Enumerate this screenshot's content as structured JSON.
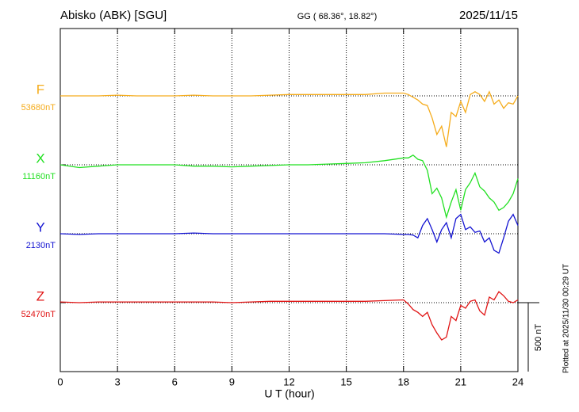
{
  "chart_data": {
    "type": "line",
    "title": "Abisko (ABK)  [SGU]",
    "subtitle": "GG ( 68.36°,  18.82°)",
    "date": "2025/11/15",
    "xlabel": "U T (hour)",
    "footnote": "Plotted at 2025/11/30 00:29 UT",
    "xlim": [
      0,
      24
    ],
    "xticks": [
      0,
      3,
      6,
      9,
      12,
      15,
      18,
      21,
      24
    ],
    "grid": true,
    "scale_bar": {
      "value": 500,
      "label": "500 nT"
    },
    "x": [
      0,
      1,
      2,
      3,
      4,
      5,
      6,
      7,
      8,
      9,
      10,
      11,
      12,
      13,
      14,
      15,
      16,
      17,
      18,
      18.25,
      18.5,
      18.75,
      19,
      19.25,
      19.5,
      19.75,
      20,
      20.25,
      20.5,
      20.75,
      21,
      21.25,
      21.5,
      21.75,
      22,
      22.25,
      22.5,
      22.75,
      23,
      23.25,
      23.5,
      23.75,
      24
    ],
    "series": [
      {
        "name": "F",
        "color": "#f5ac1c",
        "baseline": {
          "value": 53680,
          "label": "53680nT"
        },
        "values": [
          53680,
          53680,
          53680,
          53685,
          53680,
          53680,
          53680,
          53685,
          53680,
          53680,
          53680,
          53685,
          53690,
          53690,
          53690,
          53690,
          53690,
          53700,
          53700,
          53690,
          53670,
          53650,
          53620,
          53610,
          53520,
          53400,
          53460,
          53310,
          53560,
          53530,
          53640,
          53560,
          53690,
          53710,
          53690,
          53640,
          53710,
          53620,
          53650,
          53590,
          53630,
          53620,
          53680
        ]
      },
      {
        "name": "X",
        "color": "#22e022",
        "baseline": {
          "value": 11160,
          "label": "11160nT"
        },
        "values": [
          11160,
          11140,
          11150,
          11160,
          11160,
          11160,
          11160,
          11150,
          11150,
          11145,
          11150,
          11155,
          11160,
          11160,
          11165,
          11170,
          11175,
          11190,
          11210,
          11210,
          11230,
          11200,
          11190,
          11120,
          10950,
          10990,
          10920,
          10780,
          10890,
          10980,
          10830,
          10980,
          11030,
          11100,
          11000,
          10970,
          10920,
          10890,
          10830,
          10850,
          10890,
          10950,
          11060
        ]
      },
      {
        "name": "Y",
        "color": "#1414d2",
        "baseline": {
          "value": 2130,
          "label": "2130nT"
        },
        "values": [
          2130,
          2125,
          2130,
          2130,
          2130,
          2130,
          2130,
          2135,
          2130,
          2130,
          2130,
          2130,
          2130,
          2130,
          2130,
          2130,
          2130,
          2130,
          2125,
          2125,
          2120,
          2100,
          2190,
          2240,
          2160,
          2070,
          2160,
          2210,
          2100,
          2240,
          2270,
          2160,
          2180,
          2140,
          2150,
          2070,
          2100,
          2010,
          1990,
          2100,
          2220,
          2270,
          2190
        ]
      },
      {
        "name": "Z",
        "color": "#e01414",
        "baseline": {
          "value": 52470,
          "label": "52470nT"
        },
        "values": [
          52475,
          52470,
          52475,
          52475,
          52475,
          52475,
          52475,
          52475,
          52475,
          52470,
          52475,
          52480,
          52480,
          52480,
          52480,
          52480,
          52480,
          52485,
          52490,
          52460,
          52420,
          52400,
          52370,
          52400,
          52310,
          52250,
          52200,
          52220,
          52370,
          52340,
          52450,
          52430,
          52480,
          52490,
          52410,
          52380,
          52510,
          52490,
          52550,
          52520,
          52480,
          52470,
          52490
        ]
      }
    ]
  }
}
